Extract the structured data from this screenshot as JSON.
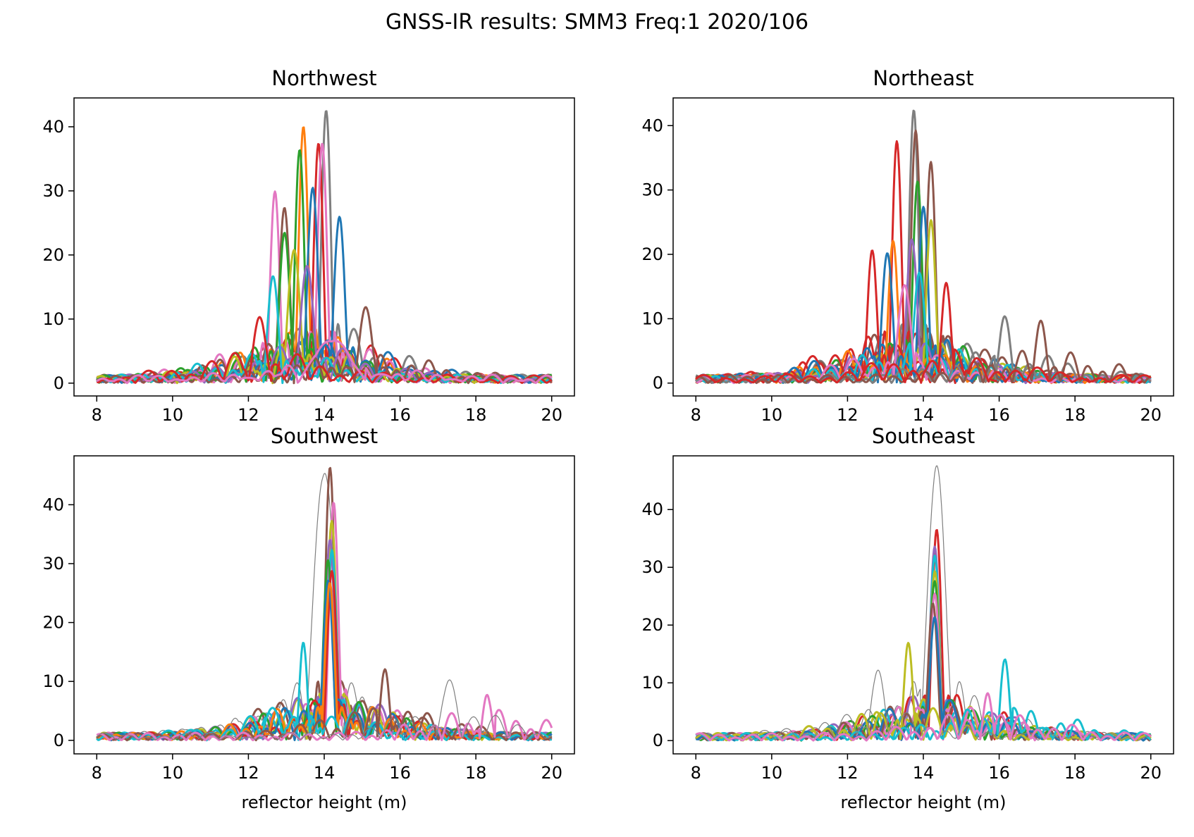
{
  "figure": {
    "suptitle": "GNSS-IR results: SMM3 Freq:1 2020/106"
  },
  "palette": [
    "#1f77b4",
    "#ff7f0e",
    "#2ca02c",
    "#d62728",
    "#9467bd",
    "#8c564b",
    "#e377c2",
    "#7f7f7f",
    "#bcbd22",
    "#17becf"
  ],
  "chart_data": [
    {
      "type": "line",
      "title": "Northwest",
      "xlabel": "",
      "ylabel": "",
      "xlim": [
        7.4,
        20.6
      ],
      "ylim": [
        -2,
        44.5
      ],
      "xticks": [
        8,
        10,
        12,
        14,
        16,
        18,
        20
      ],
      "yticks": [
        0,
        10,
        20,
        30,
        40
      ],
      "x_range": [
        8,
        20
      ],
      "series": [
        {
          "color": "#7f7f7f",
          "center": 14.05,
          "amp": 42.5,
          "width": 0.22,
          "side": 8,
          "lw": 3
        },
        {
          "color": "#ff7f0e",
          "center": 13.45,
          "amp": 39.5,
          "width": 0.22,
          "side": 7,
          "lw": 3
        },
        {
          "color": "#d62728",
          "center": 13.85,
          "amp": 37.2,
          "width": 0.22,
          "side": 7,
          "lw": 3
        },
        {
          "color": "#e377c2",
          "center": 13.95,
          "amp": 37.0,
          "width": 0.22,
          "side": 6,
          "lw": 3
        },
        {
          "color": "#2ca02c",
          "center": 13.35,
          "amp": 35.5,
          "width": 0.22,
          "side": 6,
          "lw": 3
        },
        {
          "color": "#1f77b4",
          "center": 13.7,
          "amp": 30.0,
          "width": 0.25,
          "side": 6,
          "lw": 3
        },
        {
          "color": "#e377c2",
          "center": 12.7,
          "amp": 29.0,
          "width": 0.22,
          "side": 5,
          "lw": 3
        },
        {
          "color": "#8c564b",
          "center": 12.95,
          "amp": 26.8,
          "width": 0.25,
          "side": 5,
          "lw": 3
        },
        {
          "color": "#1f77b4",
          "center": 14.4,
          "amp": 25.8,
          "width": 0.25,
          "side": 5,
          "lw": 3
        },
        {
          "color": "#2ca02c",
          "center": 12.95,
          "amp": 23.0,
          "width": 0.25,
          "side": 5,
          "lw": 3
        },
        {
          "color": "#bcbd22",
          "center": 13.2,
          "amp": 20.5,
          "width": 0.28,
          "side": 5,
          "lw": 3
        },
        {
          "color": "#9467bd",
          "center": 13.55,
          "amp": 18.0,
          "width": 0.3,
          "side": 5,
          "lw": 3
        },
        {
          "color": "#17becf",
          "center": 12.65,
          "amp": 16.0,
          "width": 0.25,
          "side": 4,
          "lw": 3
        },
        {
          "color": "#8c564b",
          "center": 15.1,
          "amp": 11.2,
          "width": 0.3,
          "side": 4,
          "lw": 3
        },
        {
          "color": "#d62728",
          "center": 12.3,
          "amp": 10.0,
          "width": 0.3,
          "side": 4,
          "lw": 3
        },
        {
          "color": "#e377c2",
          "center": 14.2,
          "amp": 6.5,
          "width": 0.9,
          "side": 2,
          "lw": 3
        }
      ]
    },
    {
      "type": "line",
      "title": "Northeast",
      "xlabel": "",
      "ylabel": "",
      "xlim": [
        7.4,
        20.6
      ],
      "ylim": [
        -2,
        44.3
      ],
      "xticks": [
        8,
        10,
        12,
        14,
        16,
        18,
        20
      ],
      "yticks": [
        0,
        10,
        20,
        30,
        40
      ],
      "x_range": [
        8,
        20
      ],
      "series": [
        {
          "color": "#7f7f7f",
          "center": 13.75,
          "amp": 42.0,
          "width": 0.22,
          "side": 8,
          "lw": 3
        },
        {
          "color": "#8c564b",
          "center": 13.8,
          "amp": 39.0,
          "width": 0.22,
          "side": 8,
          "lw": 3
        },
        {
          "color": "#d62728",
          "center": 13.3,
          "amp": 37.0,
          "width": 0.22,
          "side": 7,
          "lw": 3
        },
        {
          "color": "#8c564b",
          "center": 14.2,
          "amp": 33.8,
          "width": 0.22,
          "side": 6,
          "lw": 3
        },
        {
          "color": "#2ca02c",
          "center": 13.85,
          "amp": 31.0,
          "width": 0.22,
          "side": 6,
          "lw": 3
        },
        {
          "color": "#1f77b4",
          "center": 14.0,
          "amp": 27.0,
          "width": 0.22,
          "side": 6,
          "lw": 3
        },
        {
          "color": "#bcbd22",
          "center": 14.2,
          "amp": 25.0,
          "width": 0.22,
          "side": 5,
          "lw": 3
        },
        {
          "color": "#9467bd",
          "center": 13.7,
          "amp": 22.0,
          "width": 0.25,
          "side": 5,
          "lw": 3
        },
        {
          "color": "#ff7f0e",
          "center": 13.2,
          "amp": 21.3,
          "width": 0.22,
          "side": 5,
          "lw": 3
        },
        {
          "color": "#d62728",
          "center": 12.65,
          "amp": 20.0,
          "width": 0.22,
          "side": 5,
          "lw": 3
        },
        {
          "color": "#1f77b4",
          "center": 13.05,
          "amp": 19.3,
          "width": 0.25,
          "side": 5,
          "lw": 3
        },
        {
          "color": "#17becf",
          "center": 13.9,
          "amp": 17.0,
          "width": 0.25,
          "side": 5,
          "lw": 3
        },
        {
          "color": "#e377c2",
          "center": 13.5,
          "amp": 15.0,
          "width": 0.3,
          "side": 4,
          "lw": 3
        },
        {
          "color": "#7f7f7f",
          "center": 16.15,
          "amp": 10.3,
          "width": 0.25,
          "side": 4,
          "lw": 3
        },
        {
          "color": "#8c564b",
          "center": 17.1,
          "amp": 9.2,
          "width": 0.25,
          "side": 4,
          "lw": 3
        },
        {
          "color": "#d62728",
          "center": 14.6,
          "amp": 15.2,
          "width": 0.22,
          "side": 4,
          "lw": 3
        }
      ]
    },
    {
      "type": "line",
      "title": "Southwest",
      "xlabel": "reflector height (m)",
      "ylabel": "",
      "xlim": [
        7.4,
        20.6
      ],
      "ylim": [
        -2.3,
        48.3
      ],
      "xticks": [
        8,
        10,
        12,
        14,
        16,
        18,
        20
      ],
      "yticks": [
        0,
        10,
        20,
        30,
        40
      ],
      "x_range": [
        8,
        20
      ],
      "series": [
        {
          "color": "#7f7f7f",
          "center": 14.0,
          "amp": 45.0,
          "width": 0.5,
          "side": 8,
          "lw": 1.2
        },
        {
          "color": "#8c564b",
          "center": 14.15,
          "amp": 46.0,
          "width": 0.22,
          "side": 9,
          "lw": 3
        },
        {
          "color": "#e377c2",
          "center": 14.25,
          "amp": 40.0,
          "width": 0.22,
          "side": 7,
          "lw": 3
        },
        {
          "color": "#bcbd22",
          "center": 14.2,
          "amp": 36.5,
          "width": 0.22,
          "side": 7,
          "lw": 3
        },
        {
          "color": "#9467bd",
          "center": 14.15,
          "amp": 34.0,
          "width": 0.22,
          "side": 7,
          "lw": 3
        },
        {
          "color": "#17becf",
          "center": 14.2,
          "amp": 32.0,
          "width": 0.22,
          "side": 6,
          "lw": 3
        },
        {
          "color": "#2ca02c",
          "center": 14.1,
          "amp": 30.0,
          "width": 0.22,
          "side": 6,
          "lw": 3
        },
        {
          "color": "#d62728",
          "center": 14.2,
          "amp": 28.0,
          "width": 0.22,
          "side": 6,
          "lw": 3
        },
        {
          "color": "#1f77b4",
          "center": 14.1,
          "amp": 27.0,
          "width": 0.22,
          "side": 6,
          "lw": 3
        },
        {
          "color": "#ff7f0e",
          "center": 14.15,
          "amp": 26.0,
          "width": 0.22,
          "side": 6,
          "lw": 3
        },
        {
          "color": "#17becf",
          "center": 13.45,
          "amp": 16.5,
          "width": 0.18,
          "side": 5,
          "lw": 3
        },
        {
          "color": "#8c564b",
          "center": 15.6,
          "amp": 12.0,
          "width": 0.2,
          "side": 5,
          "lw": 3
        },
        {
          "color": "#e377c2",
          "center": 18.3,
          "amp": 7.5,
          "width": 0.2,
          "side": 4,
          "lw": 3
        },
        {
          "color": "#7f7f7f",
          "center": 17.3,
          "amp": 10.0,
          "width": 0.35,
          "side": 4,
          "lw": 1.2
        }
      ]
    },
    {
      "type": "line",
      "title": "Southeast",
      "xlabel": "reflector height (m)",
      "ylabel": "",
      "xlim": [
        7.4,
        20.6
      ],
      "ylim": [
        -2.3,
        49.3
      ],
      "xticks": [
        8,
        10,
        12,
        14,
        16,
        18,
        20
      ],
      "yticks": [
        0,
        10,
        20,
        30,
        40
      ],
      "x_range": [
        8,
        20
      ],
      "series": [
        {
          "color": "#7f7f7f",
          "center": 14.35,
          "amp": 47.0,
          "width": 0.42,
          "side": 8,
          "lw": 1.2
        },
        {
          "color": "#d62728",
          "center": 14.35,
          "amp": 36.0,
          "width": 0.22,
          "side": 7,
          "lw": 3
        },
        {
          "color": "#9467bd",
          "center": 14.3,
          "amp": 32.5,
          "width": 0.22,
          "side": 7,
          "lw": 3
        },
        {
          "color": "#17becf",
          "center": 14.3,
          "amp": 31.0,
          "width": 0.22,
          "side": 6,
          "lw": 3
        },
        {
          "color": "#bcbd22",
          "center": 14.3,
          "amp": 29.0,
          "width": 0.22,
          "side": 6,
          "lw": 3
        },
        {
          "color": "#2ca02c",
          "center": 14.3,
          "amp": 27.0,
          "width": 0.22,
          "side": 6,
          "lw": 3
        },
        {
          "color": "#e377c2",
          "center": 14.3,
          "amp": 25.0,
          "width": 0.22,
          "side": 6,
          "lw": 3
        },
        {
          "color": "#8c564b",
          "center": 14.25,
          "amp": 23.0,
          "width": 0.22,
          "side": 6,
          "lw": 3
        },
        {
          "color": "#1f77b4",
          "center": 14.3,
          "amp": 21.0,
          "width": 0.22,
          "side": 6,
          "lw": 3
        },
        {
          "color": "#bcbd22",
          "center": 13.6,
          "amp": 16.5,
          "width": 0.2,
          "side": 5,
          "lw": 3
        },
        {
          "color": "#17becf",
          "center": 16.15,
          "amp": 14.0,
          "width": 0.2,
          "side": 5,
          "lw": 3
        },
        {
          "color": "#7f7f7f",
          "center": 12.8,
          "amp": 12.0,
          "width": 0.3,
          "side": 4,
          "lw": 1.2
        },
        {
          "color": "#e377c2",
          "center": 15.7,
          "amp": 8.0,
          "width": 0.2,
          "side": 4,
          "lw": 3
        }
      ]
    }
  ]
}
